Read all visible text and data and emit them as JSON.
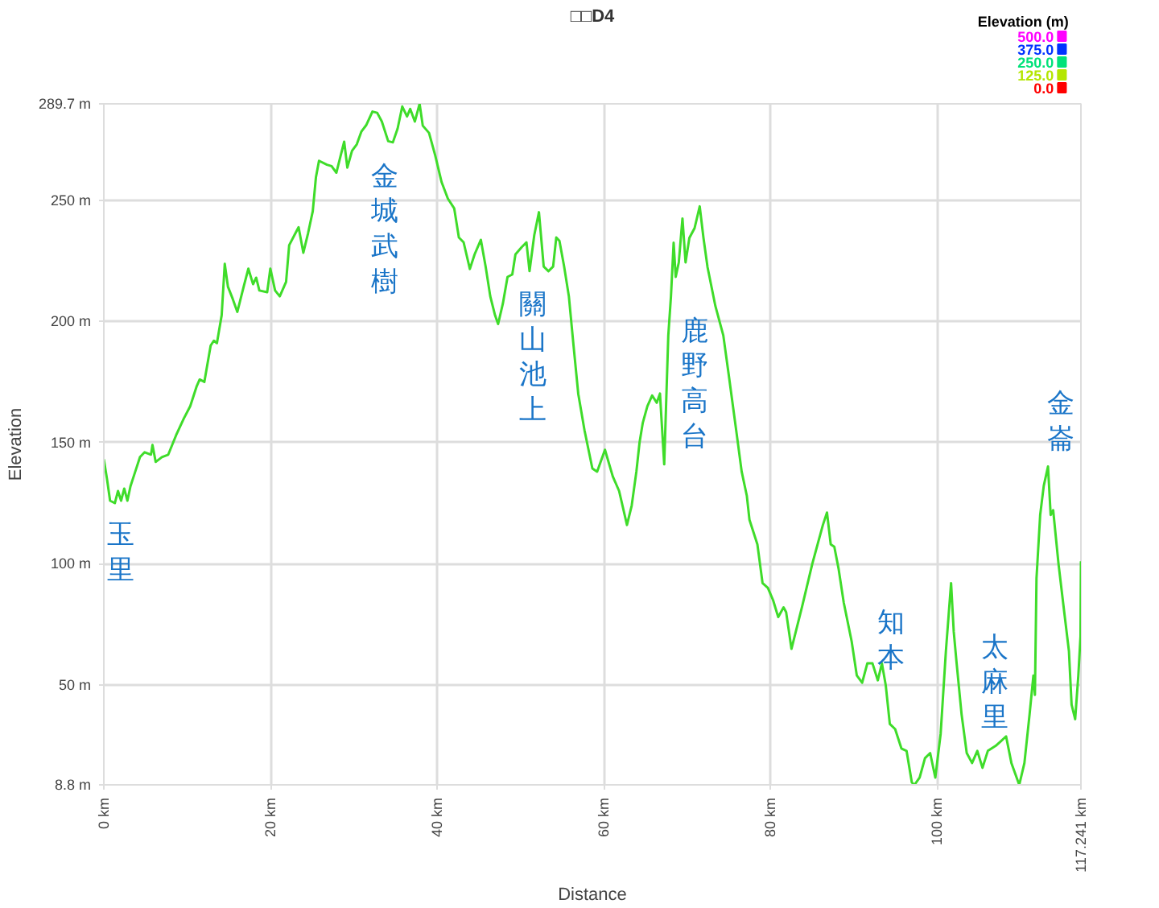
{
  "chart_data": {
    "type": "line",
    "title": "□□D4",
    "xlabel": "Distance",
    "ylabel": "Elevation",
    "clabel": "Elevation (m)",
    "cticks": [
      {
        "value": 500,
        "label": "500.0"
      },
      {
        "value": 375,
        "label": "375.0"
      },
      {
        "value": 250,
        "label": "250.0"
      },
      {
        "value": 125,
        "label": "125.0"
      },
      {
        "value": 0,
        "label": "0.0"
      }
    ],
    "color": "#3fdc2a",
    "xlim": [
      0,
      117.241
    ],
    "ylim": [
      8.8,
      289.7
    ],
    "xticks": [
      {
        "value": 0,
        "label": "0 km"
      },
      {
        "value": 20,
        "label": "20 km"
      },
      {
        "value": 40,
        "label": "40 km"
      },
      {
        "value": 60,
        "label": "60 km"
      },
      {
        "value": 80,
        "label": "80 km"
      },
      {
        "value": 100,
        "label": "100 km"
      },
      {
        "value": 117.241,
        "label": "117.241 km"
      }
    ],
    "yticks": [
      {
        "value": 8.8,
        "label": "8.8 m"
      },
      {
        "value": 50,
        "label": "50 m"
      },
      {
        "value": 100,
        "label": "100 m"
      },
      {
        "value": 150,
        "label": "150 m"
      },
      {
        "value": 200,
        "label": "200 m"
      },
      {
        "value": 250,
        "label": "250 m"
      },
      {
        "value": 289.7,
        "label": "289.7 m"
      }
    ],
    "grid": true,
    "annotations": [
      "玉里",
      "金城武樹",
      "關山池上",
      "鹿野高台",
      "知本",
      "太麻里",
      "金崙"
    ],
    "x": [
      0,
      0.38,
      0.75,
      1.32,
      1.7,
      2.07,
      2.45,
      2.83,
      3.2,
      3.77,
      4.34,
      4.9,
      5.66,
      5.84,
      6.22,
      6.97,
      7.73,
      8.67,
      9.61,
      10.37,
      11.12,
      11.5,
      12.06,
      12.82,
      13.2,
      13.57,
      14.14,
      14.51,
      14.89,
      15.46,
      16.02,
      16.78,
      17.34,
      17.91,
      18.28,
      18.66,
      19.6,
      19.98,
      20.55,
      21.11,
      21.87,
      22.24,
      23.0,
      23.37,
      23.94,
      24.51,
      25.07,
      25.45,
      25.82,
      26.77,
      27.33,
      27.9,
      28.84,
      29.22,
      29.78,
      30.35,
      30.91,
      31.48,
      32.23,
      32.8,
      33.36,
      34.12,
      34.68,
      35.25,
      35.81,
      36.38,
      36.76,
      37.32,
      37.89,
      38.27,
      39.02,
      39.77,
      40.53,
      41.28,
      42.04,
      42.6,
      43.17,
      43.92,
      44.49,
      45.24,
      45.81,
      46.37,
      46.94,
      47.31,
      47.88,
      48.44,
      49.01,
      49.39,
      50.14,
      50.71,
      51.08,
      51.65,
      52.21,
      52.78,
      53.35,
      53.91,
      54.29,
      54.67,
      55.23,
      55.8,
      56.36,
      56.93,
      57.68,
      58.62,
      59.19,
      60.13,
      61.07,
      61.83,
      62.77,
      63.34,
      63.9,
      64.28,
      64.66,
      65.22,
      65.79,
      66.35,
      66.73,
      67.24,
      67.73,
      68.05,
      68.37,
      68.62,
      68.99,
      69.43,
      69.8,
      70.26,
      70.88,
      71.5,
      71.95,
      72.44,
      73.38,
      74.33,
      74.97,
      75.91,
      76.53,
      77.15,
      77.47,
      78.42,
      79.04,
      79.68,
      80.3,
      80.92,
      81.56,
      81.87,
      82.51,
      83.76,
      85.01,
      86.28,
      86.77,
      87.22,
      87.65,
      88.16,
      88.78,
      89.73,
      90.35,
      90.99,
      91.61,
      92.23,
      92.87,
      93.36,
      93.82,
      94.31,
      94.95,
      95.7,
      96.32,
      96.95,
      97.27,
      97.89,
      98.53,
      99.15,
      99.77,
      100.41,
      101.04,
      101.66,
      101.98,
      102.3,
      102.92,
      103.54,
      104.18,
      104.81,
      105.43,
      106.07,
      107.01,
      107.63,
      108.26,
      108.9,
      109.84,
      110.46,
      111.08,
      111.54,
      111.72,
      111.91,
      112.35,
      112.78,
      113.29,
      113.61,
      113.91,
      114.55,
      115.17,
      115.8,
      116.12,
      116.55,
      116.93,
      117.19,
      117.241
    ],
    "values": [
      143.1,
      135,
      126,
      125,
      130,
      126,
      131,
      126,
      132,
      138,
      144,
      146,
      145,
      149,
      142,
      144,
      145,
      153,
      160,
      165,
      173,
      176,
      175,
      190,
      192,
      191,
      202.5,
      223.7,
      214.3,
      209.3,
      203.9,
      214.3,
      221.7,
      215.3,
      218,
      212.7,
      212,
      221.7,
      212.7,
      210.3,
      216.3,
      231.4,
      236.4,
      238.8,
      228.3,
      236.4,
      245.4,
      259.4,
      266.2,
      264.6,
      264,
      261.3,
      274.1,
      263.4,
      270.3,
      273,
      278.3,
      280.9,
      286.5,
      286,
      282.4,
      274.3,
      273.8,
      279.5,
      288.6,
      284.5,
      287.6,
      282.4,
      289.7,
      280.7,
      277.7,
      268.3,
      257.4,
      250.6,
      246.6,
      234.6,
      232.6,
      221.6,
      227.6,
      233.6,
      222.6,
      210.3,
      202.5,
      198.9,
      207.3,
      218.3,
      219.3,
      227.6,
      230.6,
      232.6,
      220.7,
      235.6,
      245,
      222.6,
      220.7,
      222.6,
      234.6,
      233.2,
      222.6,
      210.3,
      190,
      170,
      155,
      139.3,
      138,
      147,
      136,
      130,
      116,
      124,
      138,
      150,
      158,
      165,
      169.4,
      166.4,
      170.2,
      141,
      194.2,
      210.3,
      232.4,
      218.3,
      224.3,
      242.4,
      224.3,
      234.4,
      238.4,
      247.4,
      234.4,
      222.3,
      206.3,
      194.2,
      178.2,
      154.2,
      138.1,
      128.1,
      118.1,
      108,
      92,
      90,
      85,
      78,
      82,
      80,
      64.9,
      82,
      100,
      116,
      121.1,
      108,
      107,
      98,
      84,
      68,
      53.9,
      50.9,
      58.9,
      58.9,
      51.9,
      58.9,
      49.9,
      33.9,
      31.8,
      23.8,
      22.8,
      9.8,
      8.8,
      11.8,
      19.8,
      21.9,
      11.8,
      29.9,
      64,
      92,
      72,
      59.9,
      37.9,
      21.9,
      17.8,
      22.8,
      15.8,
      22.8,
      24.9,
      26.8,
      28.8,
      17.8,
      8.8,
      17.8,
      37.9,
      53.9,
      45.9,
      94,
      120.1,
      132.1,
      140.1,
      120.1,
      122.1,
      100,
      82,
      64,
      41.9,
      35.9,
      53.9,
      70,
      101
    ]
  }
}
